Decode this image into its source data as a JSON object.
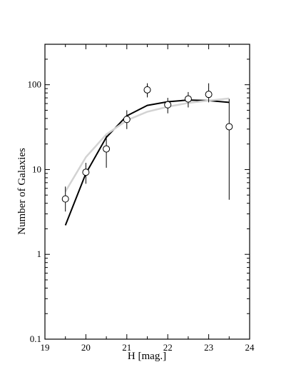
{
  "chart_data": {
    "type": "scatter",
    "title": "",
    "xlabel": "H [mag.]",
    "ylabel": "Number of Galaxies",
    "xlim": [
      19,
      24
    ],
    "ylim": [
      0.1,
      300
    ],
    "yscale": "log",
    "grid": false,
    "x_ticks": [
      19,
      20,
      21,
      22,
      23,
      24
    ],
    "x_tick_labels": [
      "19",
      "20",
      "21",
      "22",
      "23",
      "24"
    ],
    "y_ticks": [
      0.1,
      1,
      10,
      100
    ],
    "y_tick_labels": [
      "0.1",
      "1",
      "10",
      "100"
    ],
    "series": [
      {
        "kind": "line",
        "color": "#000000",
        "x": [
          19.5,
          20.0,
          20.5,
          21.0,
          21.5,
          22.0,
          22.5,
          23.0,
          23.5
        ],
        "y": [
          2.2,
          9.0,
          24.0,
          43.0,
          57.0,
          63.0,
          66.0,
          65.0,
          62.0
        ]
      },
      {
        "kind": "line",
        "color": "#d3d3d3",
        "x": [
          19.5,
          20.0,
          20.5,
          21.0,
          21.5,
          22.0,
          22.5,
          23.0,
          23.5
        ],
        "y": [
          5.5,
          14.0,
          26.0,
          38.0,
          48.0,
          55.0,
          61.0,
          65.0,
          69.0
        ]
      },
      {
        "kind": "points-with-errors",
        "color": "#000000",
        "marker": "open-circle",
        "x": [
          19.5,
          20.0,
          20.5,
          21.0,
          21.5,
          22.0,
          22.5,
          23.0,
          23.5
        ],
        "y": [
          4.5,
          9.3,
          17.5,
          39.0,
          87.0,
          58.0,
          68.0,
          77.0,
          32.0
        ],
        "y_err_low": [
          3.2,
          6.8,
          10.5,
          30.0,
          71.0,
          46.0,
          54.0,
          62.0,
          4.4
        ],
        "y_err_high": [
          6.3,
          12.0,
          25.0,
          50.0,
          104.0,
          70.0,
          82.0,
          104.0,
          68.0
        ]
      }
    ]
  }
}
